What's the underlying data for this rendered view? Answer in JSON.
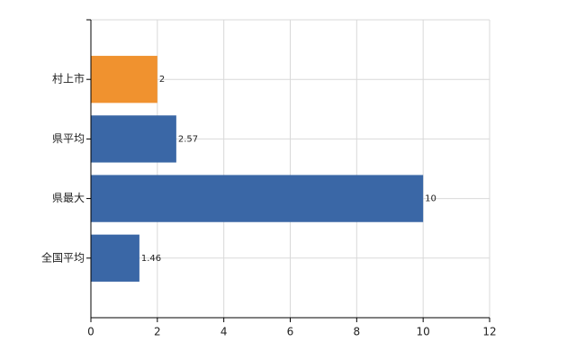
{
  "chart_data": {
    "type": "hbar",
    "categories": [
      "村上市",
      "県平均",
      "県最大",
      "全国平均"
    ],
    "values": [
      2,
      2.57,
      10,
      1.46
    ],
    "colors": [
      "#f0922f",
      "#3a67a6",
      "#3a67a6",
      "#3a67a6"
    ],
    "xlim": [
      0,
      12
    ],
    "xticks": [
      0,
      2,
      4,
      6,
      8,
      10,
      12
    ],
    "grid": true
  }
}
